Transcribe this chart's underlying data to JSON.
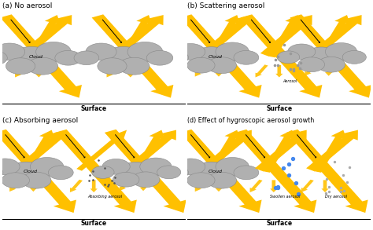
{
  "panel_titles": [
    "(a) No aerosol",
    "(b) Scattering aerosol",
    "(c) Absorbing aerosol",
    "(d) Effect of hygroscopic aerosol growth"
  ],
  "surface_label": "Surface",
  "cloud_label": "Cloud",
  "aerosol_label": "Aerosol",
  "absorbing_aerosol_label": "Absorbing aerosol",
  "swollen_aerosol_label": "Swollen aerosol",
  "dry_aerosol_label": "Dry aerosol",
  "arrow_color": "#FFC000",
  "background_color": "#FFFFFF",
  "cloud_color": "#B0B0B0",
  "cloud_edge_color": "#888888",
  "dot_color_scatter": "#999999",
  "dot_color_absorb": "#555555",
  "dot_color_swollen": "#4488EE",
  "dot_color_dry": "#AAAAAA"
}
